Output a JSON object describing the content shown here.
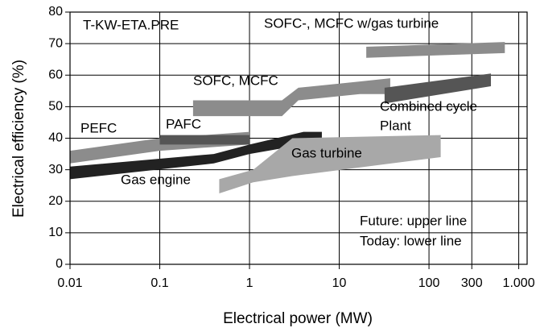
{
  "chart_data": {
    "type": "band",
    "x_label": "Electrical power (MW)",
    "y_label": "Electrical efficiency (%)",
    "xscale": "log",
    "xlim": [
      0.01,
      1240
    ],
    "xticks": [
      0.01,
      0.1,
      1,
      10,
      100,
      300,
      {
        "value": 1000,
        "label": "1.000"
      }
    ],
    "ylim": [
      0,
      80
    ],
    "yticks": [
      0,
      10,
      20,
      30,
      40,
      50,
      60,
      70,
      80
    ],
    "grid": true,
    "series": [
      {
        "color": "#8c8c8c",
        "x": [
          0.01,
          0.1,
          1
        ],
        "upper": [
          36,
          40,
          42
        ],
        "lower": [
          32,
          36,
          38
        ]
      },
      {
        "color": "#555555",
        "x": [
          0.1,
          1
        ],
        "upper": [
          41,
          41
        ],
        "lower": [
          38,
          38
        ]
      },
      {
        "color": "#222222",
        "x": [
          0.01,
          0.4,
          1,
          4,
          6.4
        ],
        "upper": [
          31,
          35,
          38,
          42,
          42
        ],
        "lower": [
          27,
          32,
          35,
          38,
          38
        ]
      },
      {
        "color": "#a8a8a8",
        "x": [
          0.46,
          1.1,
          3,
          135
        ],
        "upper": [
          27,
          30,
          40,
          41
        ],
        "lower": [
          22.5,
          26,
          28,
          34
        ]
      },
      {
        "color": "#8c8c8c",
        "x": [
          0.235,
          2.3,
          3.5,
          17,
          37
        ],
        "upper": [
          52,
          52,
          56,
          58,
          59
        ],
        "lower": [
          47,
          47,
          52,
          54,
          54
        ]
      },
      {
        "color": "#8c8c8c",
        "x": [
          20,
          700
        ],
        "upper": [
          69,
          70.5
        ],
        "lower": [
          65.5,
          67
        ]
      },
      {
        "color": "#555555",
        "x": [
          32,
          490
        ],
        "upper": [
          56,
          60.5
        ],
        "lower": [
          51,
          56.5
        ]
      }
    ],
    "annotations": [
      "T-KW-ETA.PRE",
      "SOFC-, MCFC w/gas turbine",
      "SOFC, MCFC",
      "Combined cycle",
      "Plant",
      "PEFC",
      "PAFC",
      "Gas turbine",
      "Gas engine",
      "Future: upper line",
      "Today: lower line"
    ]
  }
}
